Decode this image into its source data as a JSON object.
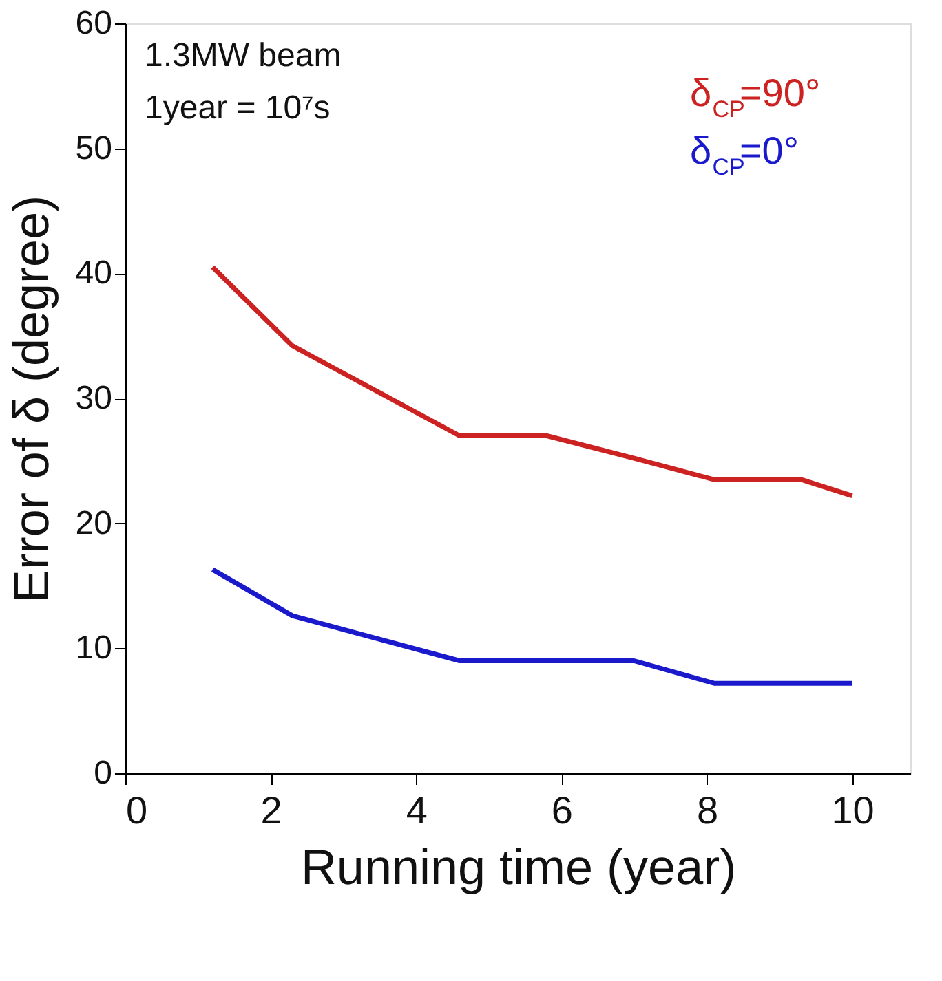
{
  "chart_data": {
    "type": "line",
    "xlabel": "Running time (year)",
    "ylabel": "Error of δ (degree)",
    "xlim": [
      0,
      10.8
    ],
    "ylim": [
      0,
      60
    ],
    "xticks": [
      0,
      2,
      4,
      6,
      8,
      10
    ],
    "yticks": [
      0,
      10,
      20,
      30,
      40,
      50,
      60
    ],
    "grid": false,
    "legend": "top right",
    "marker": "none",
    "line_style": "solid",
    "annotations": [
      "1.3MW beam",
      "1year = 10⁷s"
    ],
    "series": [
      {
        "name": "δ$_{CP}$=90°",
        "color": "#cc2222",
        "x": [
          1.2,
          2.3,
          4.6,
          5.8,
          7.0,
          8.1,
          9.3,
          10.0
        ],
        "values": [
          40.5,
          34.2,
          27.0,
          27.0,
          25.2,
          23.5,
          23.5,
          22.2
        ]
      },
      {
        "name": "δ$_{CP}$=0°",
        "color": "#1a1acc",
        "x": [
          1.2,
          2.3,
          4.6,
          7.0,
          8.1,
          10.0
        ],
        "values": [
          16.3,
          12.6,
          9.0,
          9.0,
          7.2,
          7.2
        ]
      }
    ]
  }
}
